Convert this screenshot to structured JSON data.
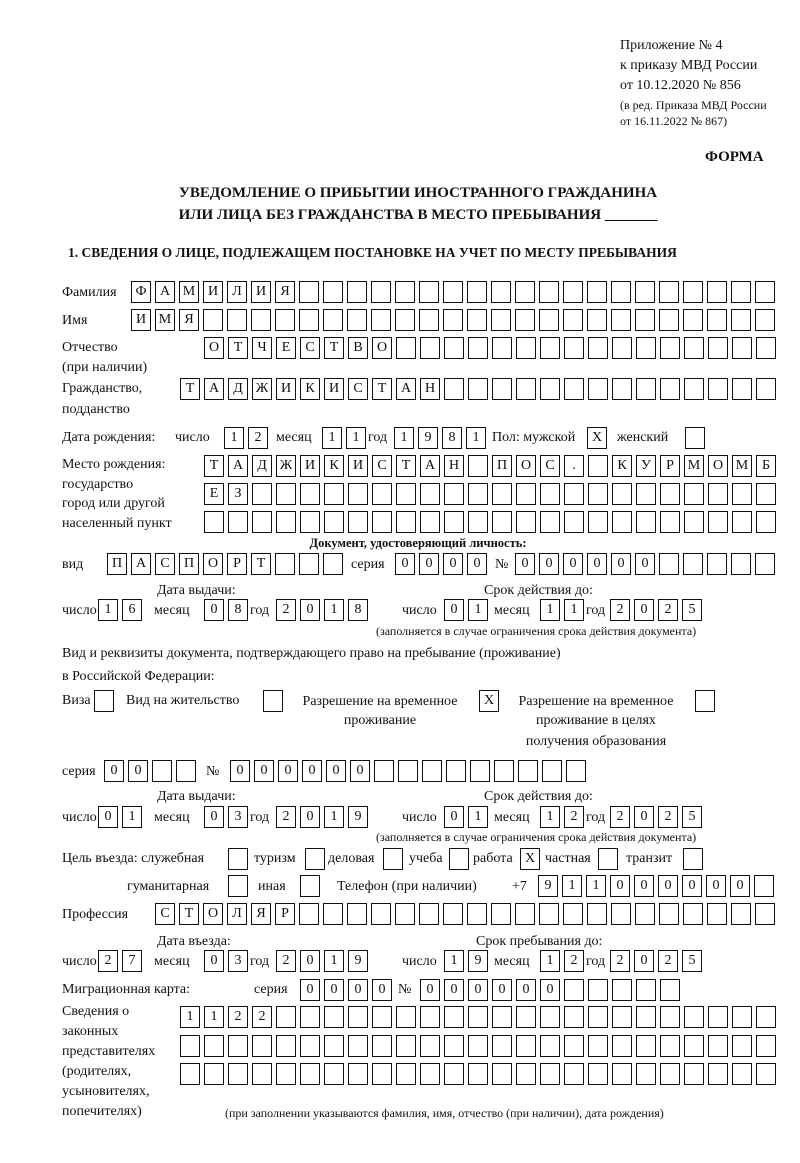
{
  "header": {
    "appendix": "Приложение № 4",
    "order_line1": "к приказу МВД России",
    "order_line2": "от 10.12.2020 № 856",
    "revision_line1": "(в ред. Приказа МВД России",
    "revision_line2": "от 16.11.2022 № 867)",
    "form_label": "ФОРМА",
    "title_line1": "УВЕДОМЛЕНИЕ О ПРИБЫТИИ ИНОСТРАННОГО ГРАЖДАНИНА",
    "title_line2": "ИЛИ ЛИЦА БЕЗ ГРАЖДАНСТВА В МЕСТО ПРЕБЫВАНИЯ _______",
    "section1": "1. СВЕДЕНИЯ О ЛИЦЕ, ПОДЛЕЖАЩЕМ ПОСТАНОВКЕ НА УЧЕТ ПО МЕСТУ ПРЕБЫВАНИЯ"
  },
  "labels": {
    "surname": "Фамилия",
    "name": "Имя",
    "patronymic": "Отчество",
    "patronymic_note": "(при наличии)",
    "citizenship": "Гражданство,",
    "citizenship2": "подданство",
    "birth_date": "Дата рождения:",
    "day": "число",
    "month": "месяц",
    "year": "год",
    "sex": "Пол: мужской",
    "female": "женский",
    "birthplace1": "Место рождения:",
    "birthplace2": "государство",
    "birthplace3": "город или другой",
    "birthplace4": "населенный пункт",
    "id_doc": "Документ, удостоверяющий личность:",
    "kind": "вид",
    "series": "серия",
    "number": "№",
    "issue_date": "Дата выдачи:",
    "valid_until": "Срок действия до:",
    "validity_note": "(заполняется в случае ограничения срока действия документа)",
    "stay_doc1": "Вид и реквизиты документа, подтверждающего право на пребывание (проживание)",
    "stay_doc2": "в Российской Федерации:",
    "visa": "Виза",
    "residence": "Вид на жительство",
    "temp_res1": "Разрешение на временное",
    "temp_res2": "проживание",
    "temp_edu1": "Разрешение на временное",
    "temp_edu2": "проживание в целях",
    "temp_edu3": "получения образования",
    "purpose": "Цель въезда: служебная",
    "tourism": "туризм",
    "business": "деловая",
    "study": "учеба",
    "work": "работа",
    "private": "частная",
    "transit": "транзит",
    "humanitarian": "гуманитарная",
    "other": "иная",
    "phone": "Телефон (при наличии)",
    "phone_prefix": "+7",
    "profession": "Профессия",
    "entry_date": "Дата въезда:",
    "stay_until": "Срок пребывания до:",
    "migration_card": "Миграционная карта:",
    "rep1": "Сведения о",
    "rep2": "законных",
    "rep3": "представителях",
    "rep4": "(родителях,",
    "rep5": "усыновителях,",
    "rep6": "попечителях)",
    "rep_note": "(при заполнении указываются фамилия, имя, отчество (при наличии), дата рождения)"
  },
  "fields": {
    "surname": [
      "Ф",
      "А",
      "М",
      "И",
      "Л",
      "И",
      "Я"
    ],
    "name": [
      "И",
      "М",
      "Я"
    ],
    "patronymic": [
      "О",
      "Т",
      "Ч",
      "Е",
      "С",
      "Т",
      "В",
      "О"
    ],
    "citizenship": [
      "Т",
      "А",
      "Д",
      "Ж",
      "И",
      "К",
      "И",
      "С",
      "Т",
      "А",
      "Н"
    ],
    "birth_day": [
      "1",
      "2"
    ],
    "birth_month": [
      "1",
      "1"
    ],
    "birth_year": [
      "1",
      "9",
      "8",
      "1"
    ],
    "sex_male": "X",
    "sex_female": "",
    "birthplace_row1": [
      "Т",
      "А",
      "Д",
      "Ж",
      "И",
      "К",
      "И",
      "С",
      "Т",
      "А",
      "Н",
      "",
      "П",
      "О",
      "С",
      ".",
      "",
      "К",
      "У",
      "Р",
      "М",
      "О",
      "М",
      "Б"
    ],
    "birthplace_row2": [
      "Е",
      "З"
    ],
    "birthplace_row3": [],
    "id_kind": [
      "П",
      "А",
      "С",
      "П",
      "О",
      "Р",
      "Т"
    ],
    "id_series": [
      "0",
      "0",
      "0",
      "0"
    ],
    "id_number": [
      "0",
      "0",
      "0",
      "0",
      "0",
      "0"
    ],
    "id_issue_day": [
      "1",
      "6"
    ],
    "id_issue_month": [
      "0",
      "8"
    ],
    "id_issue_year": [
      "2",
      "0",
      "1",
      "8"
    ],
    "id_valid_day": [
      "0",
      "1"
    ],
    "id_valid_month": [
      "1",
      "1"
    ],
    "id_valid_year": [
      "2",
      "0",
      "2",
      "5"
    ],
    "visa": "",
    "residence_permit": "",
    "temp_residence": "X",
    "temp_residence_edu": "",
    "stay_series": [
      "0",
      "0"
    ],
    "stay_number": [
      "0",
      "0",
      "0",
      "0",
      "0",
      "0"
    ],
    "stay_issue_day": [
      "0",
      "1"
    ],
    "stay_issue_month": [
      "0",
      "3"
    ],
    "stay_issue_year": [
      "2",
      "0",
      "1",
      "9"
    ],
    "stay_valid_day": [
      "0",
      "1"
    ],
    "stay_valid_month": [
      "1",
      "2"
    ],
    "stay_valid_year": [
      "2",
      "0",
      "2",
      "5"
    ],
    "purpose_official": "",
    "purpose_tourism": "",
    "purpose_business": "",
    "purpose_study": "",
    "purpose_work": "X",
    "purpose_private": "",
    "purpose_transit": "",
    "purpose_humanitarian": "",
    "purpose_other": "",
    "phone": [
      "9",
      "1",
      "1",
      "0",
      "0",
      "0",
      "0",
      "0",
      "0"
    ],
    "profession": [
      "С",
      "Т",
      "О",
      "Л",
      "Я",
      "Р"
    ],
    "entry_day": [
      "2",
      "7"
    ],
    "entry_month": [
      "0",
      "3"
    ],
    "entry_year": [
      "2",
      "0",
      "1",
      "9"
    ],
    "stay_until_day": [
      "1",
      "9"
    ],
    "stay_until_month": [
      "1",
      "2"
    ],
    "stay_until_year": [
      "2",
      "0",
      "2",
      "5"
    ],
    "mig_series": [
      "0",
      "0",
      "0",
      "0"
    ],
    "mig_number": [
      "0",
      "0",
      "0",
      "0",
      "0",
      "0"
    ],
    "rep_row1": [
      "1",
      "1",
      "2",
      "2"
    ],
    "rep_row2": [],
    "rep_row3": []
  }
}
